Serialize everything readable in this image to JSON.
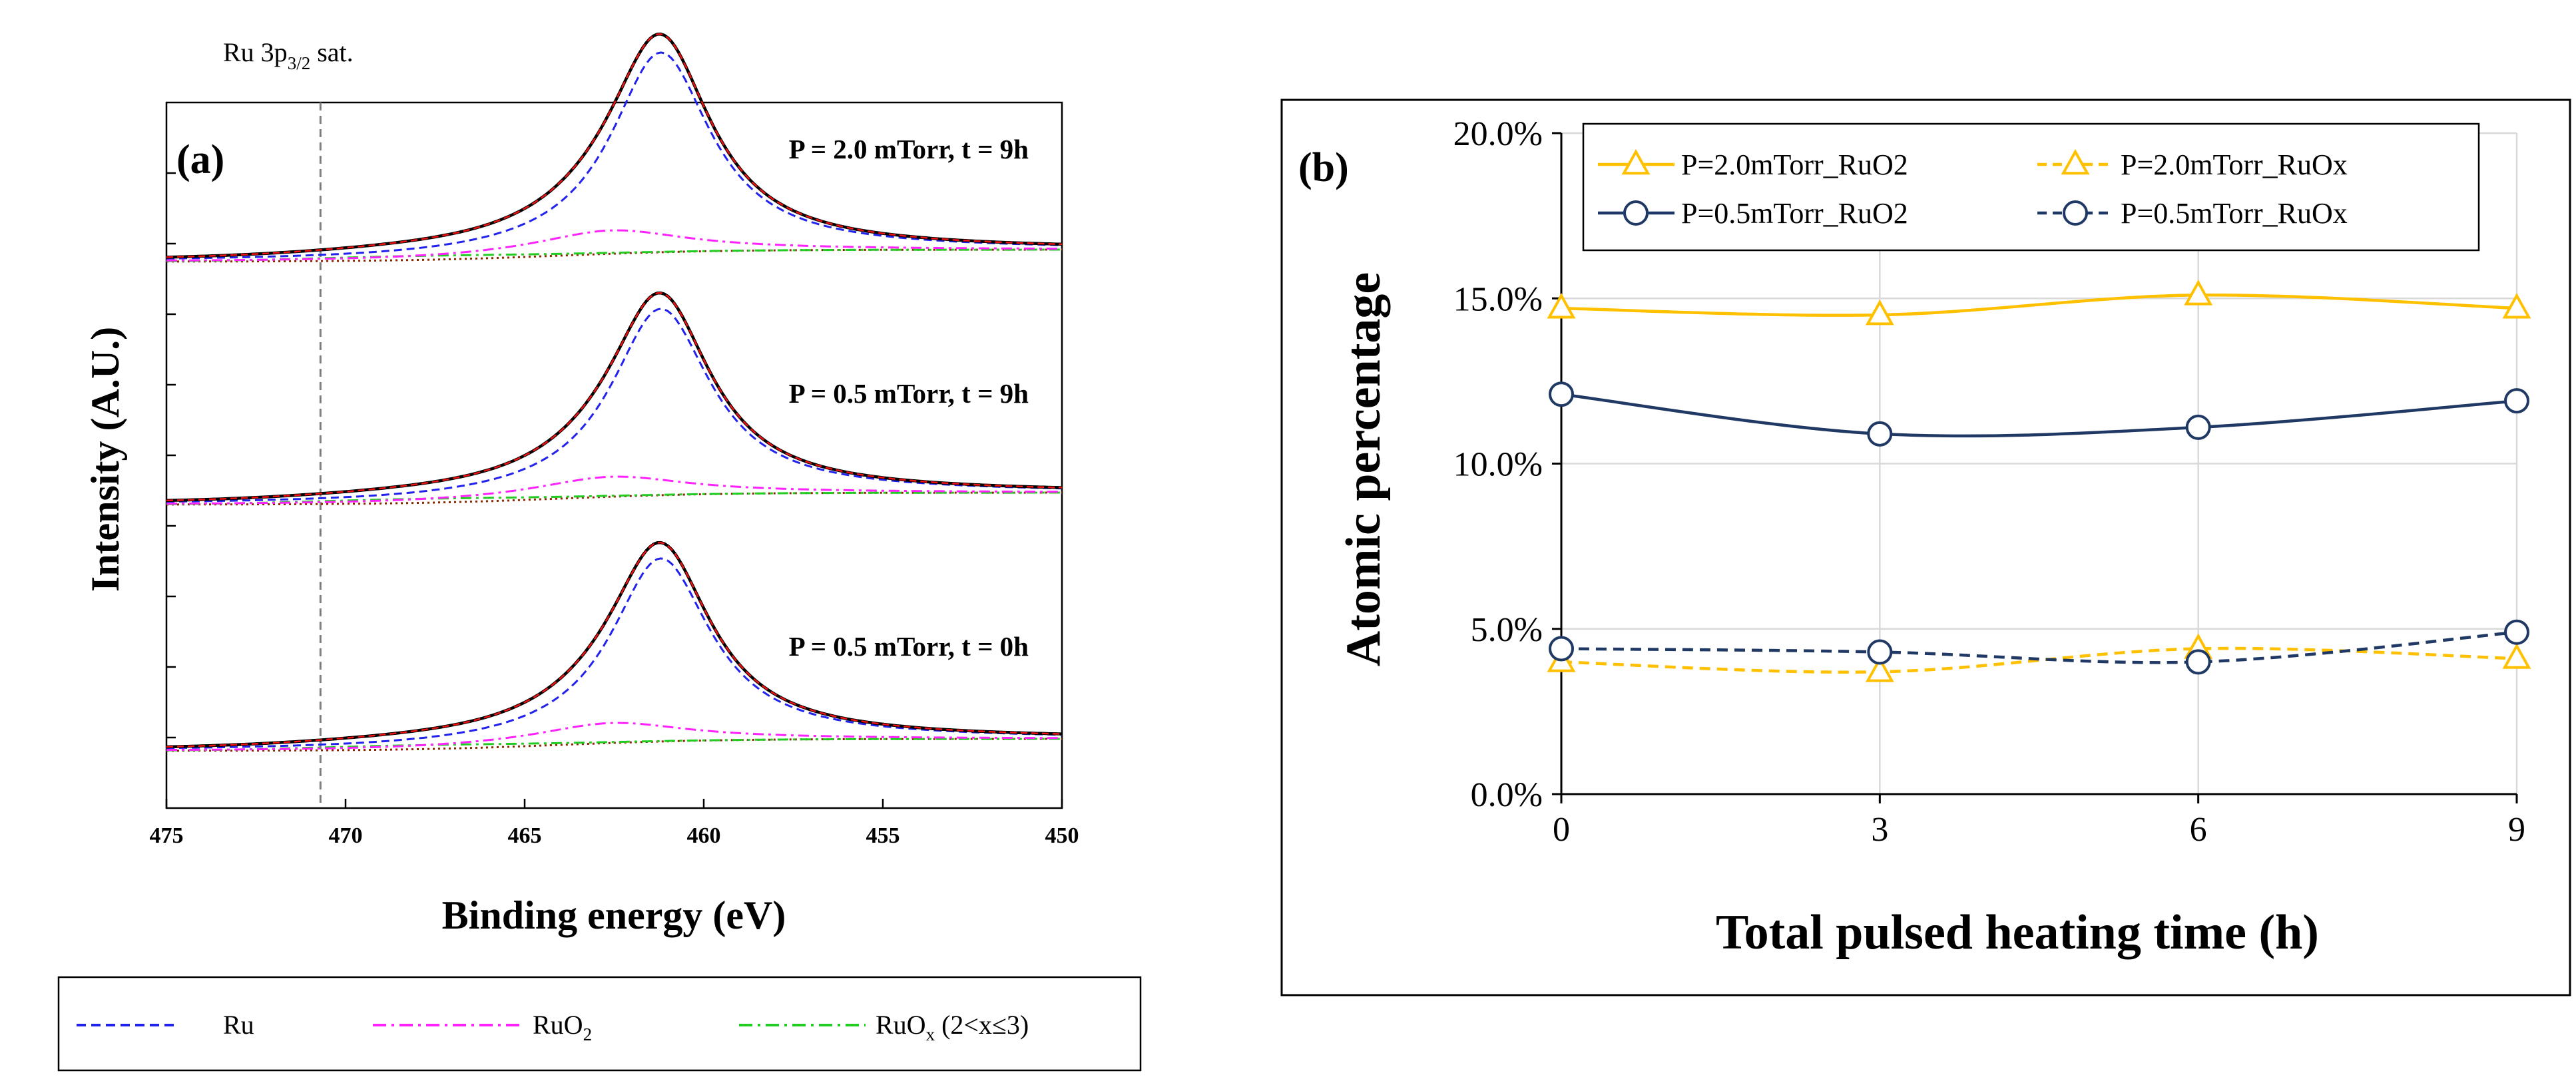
{
  "chart_data": [
    {
      "type": "line",
      "panel": "(a)",
      "top_label": {
        "main": "Ru 3p",
        "sub": "3/2",
        "tail": " sat."
      },
      "xlabel": "Binding energy (eV)",
      "ylabel": "Intensity (A.U.)",
      "xlim": [
        475,
        450
      ],
      "x_ticks": [
        475,
        470,
        465,
        460,
        455,
        450
      ],
      "reference_line_x": 470.7,
      "spectra": [
        {
          "label": "P = 2.0 mTorr, t = 9h",
          "peak_ev": 461.2,
          "peak_height": 3.0,
          "ruo2_height": 0.35
        },
        {
          "label": "P = 0.5 mTorr, t = 9h",
          "peak_ev": 461.2,
          "peak_height": 2.8,
          "ruo2_height": 0.3
        },
        {
          "label": "P = 0.5 mTorr, t = 0h",
          "peak_ev": 461.2,
          "peak_height": 2.75,
          "ruo2_height": 0.3
        }
      ],
      "legend": [
        {
          "name": "Ru",
          "main": "Ru",
          "sub": "",
          "tail": "",
          "color": "#2222ee",
          "dash": "dash"
        },
        {
          "name": "RuO2",
          "main": "RuO",
          "sub": "2",
          "tail": "",
          "color": "#ff22ff",
          "dash": "dashdot"
        },
        {
          "name": "RuOx",
          "main": "RuO",
          "sub": "x",
          "tail": " (2<x≤3)",
          "color": "#22cc22",
          "dash": "dashdot"
        }
      ],
      "colors": {
        "envelope": "#000000",
        "fit": "#ee1111",
        "background": "#8b2500"
      }
    },
    {
      "type": "line",
      "panel": "(b)",
      "title": "",
      "xlabel": "Total pulsed heating time (h)",
      "ylabel": "Atomic percentage",
      "x": [
        0,
        3,
        6,
        9
      ],
      "x_ticks": [
        "0",
        "3",
        "6",
        "9"
      ],
      "ylim": [
        0,
        20
      ],
      "y_ticks": [
        "0.0%",
        "5.0%",
        "10.0%",
        "15.0%",
        "20.0%"
      ],
      "grid": true,
      "legend_position": "top",
      "series": [
        {
          "name": "P=2.0mTorr_RuO2",
          "values": [
            14.7,
            14.5,
            15.1,
            14.7
          ],
          "color": "#ffc000",
          "style": "solid",
          "marker": "triangle"
        },
        {
          "name": "P=2.0mTorr_RuOx",
          "values": [
            4.0,
            3.7,
            4.4,
            4.1
          ],
          "color": "#ffc000",
          "style": "dashed",
          "marker": "triangle"
        },
        {
          "name": "P=0.5mTorr_RuO2",
          "values": [
            12.1,
            10.9,
            11.1,
            11.9
          ],
          "color": "#1f3864",
          "style": "solid",
          "marker": "circle"
        },
        {
          "name": "P=0.5mTorr_RuOx",
          "values": [
            4.4,
            4.3,
            4.0,
            4.9
          ],
          "color": "#1f3864",
          "style": "dashed",
          "marker": "circle"
        }
      ]
    }
  ]
}
